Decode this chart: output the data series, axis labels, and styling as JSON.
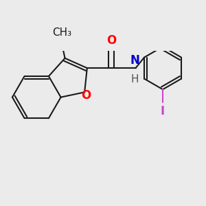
{
  "bg_color": "#ebebeb",
  "bond_color": "#1a1a1a",
  "bond_width": 1.5,
  "atom_colors": {
    "O": "#ff0000",
    "N": "#0000cc",
    "H": "#555555",
    "I": "#cc44cc",
    "C": "#1a1a1a"
  },
  "font_size": 12,
  "font_size_small": 11
}
